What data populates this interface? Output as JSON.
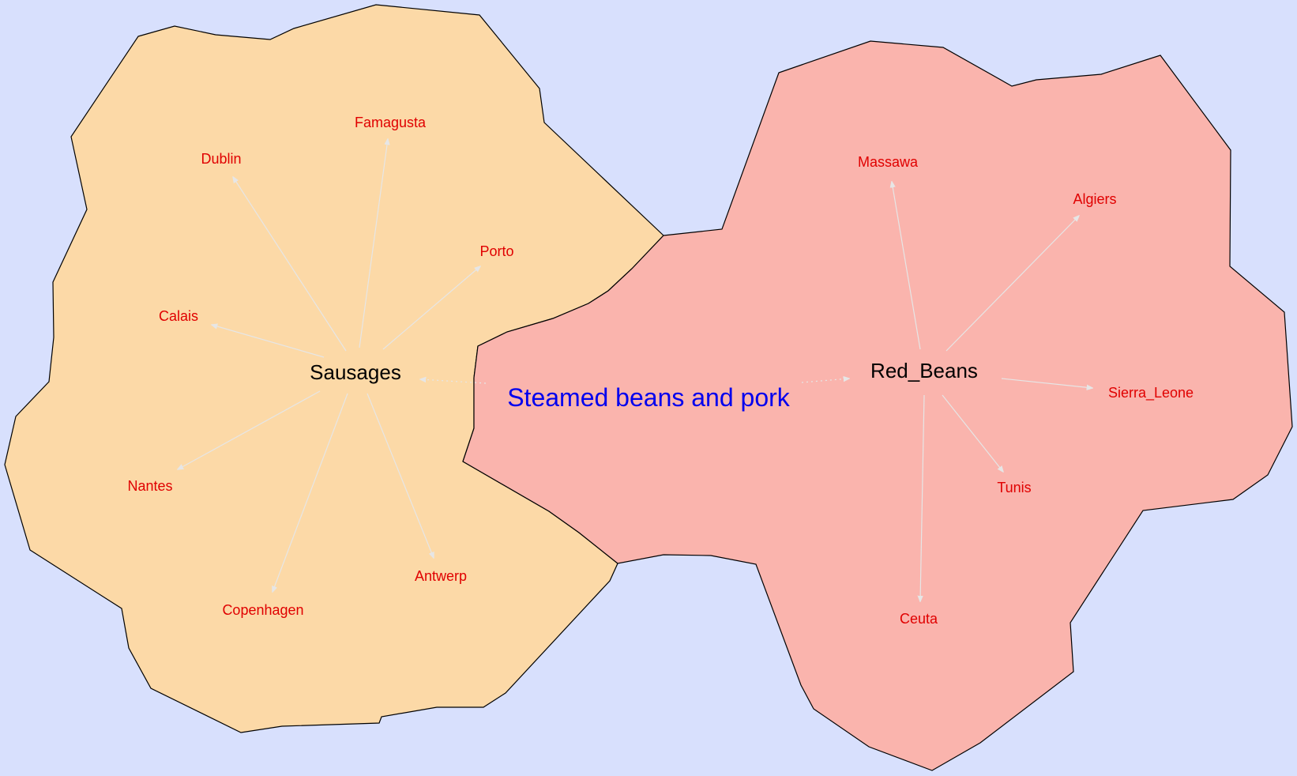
{
  "background_color": "#d8e0fd",
  "regions": [
    {
      "hub": "Sausages",
      "fill": "#fcd9a7",
      "leaves": [
        "Dublin",
        "Famagusta",
        "Porto",
        "Calais",
        "Nantes",
        "Copenhagen",
        "Antwerp"
      ]
    },
    {
      "hub": "Red_Beans",
      "fill": "#fab4ad",
      "leaves": [
        "Massawa",
        "Algiers",
        "Sierra_Leone",
        "Tunis",
        "Ceuta"
      ]
    }
  ],
  "center_label": "Steamed beans and pork",
  "colors": {
    "leaf_text": "#e00000",
    "hub_text": "#000000",
    "center_text": "#0000ee",
    "edge": "#e6e6e6"
  }
}
